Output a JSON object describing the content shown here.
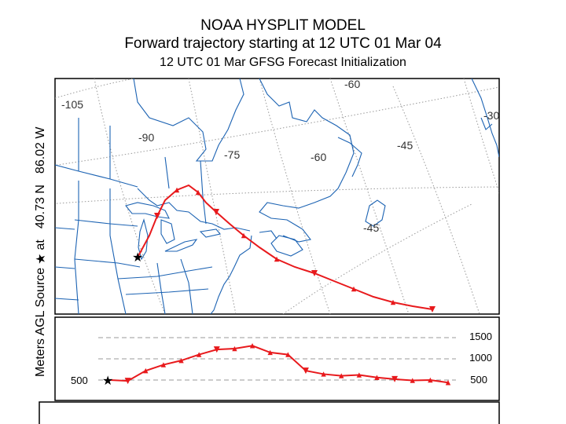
{
  "header": {
    "line1": "NOAA HYSPLIT MODEL",
    "line2": "Forward trajectory starting at 12 UTC 01 Mar 04",
    "line3": "12 UTC 01 Mar    GFSG  Forecast Initialization"
  },
  "side_label": {
    "prefix": "Meters AGL",
    "source": "Source",
    "star": "★",
    "at": "at",
    "lat": "40.73 N",
    "lon": "86.02 W"
  },
  "map": {
    "longitude_labels": [
      "-105",
      "-90",
      "-75",
      "-60",
      "-45",
      "-30",
      "-45",
      "-60"
    ],
    "trajectory_color": "#e8191c",
    "source_marker": "star-icon"
  },
  "chart_data": {
    "type": "line",
    "title": "",
    "xlabel": "",
    "ylabel": "Meters AGL",
    "yticks": [
      500,
      1000,
      1500
    ],
    "ytick_labels": [
      "1500",
      "1000",
      "500"
    ],
    "source_label": "500",
    "series": [
      {
        "values": [
          500,
          480,
          720,
          860,
          960,
          1100,
          1220,
          1240,
          1310,
          1150,
          1100,
          720,
          640,
          600,
          620,
          560,
          520,
          490,
          500,
          440
        ]
      }
    ]
  }
}
